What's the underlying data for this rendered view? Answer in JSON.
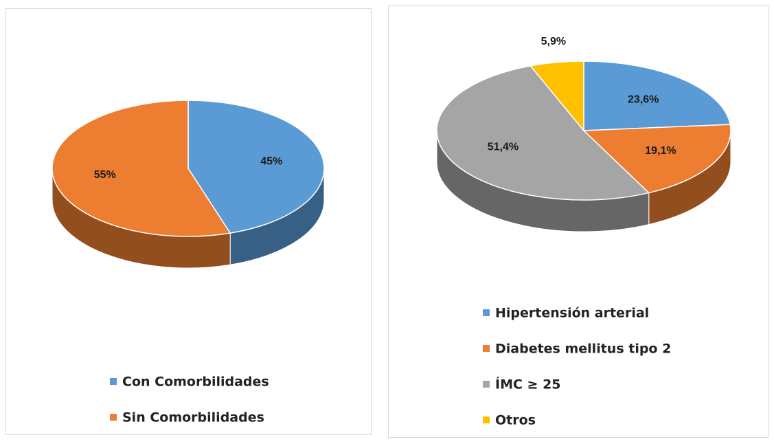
{
  "chart_data": [
    {
      "type": "pie3d",
      "categories": [
        "Con Comorbilidades",
        "Sin Comorbilidades"
      ],
      "values": [
        45,
        55
      ],
      "value_labels": [
        "45%",
        "55%"
      ],
      "colors": [
        "#5b9bd5",
        "#ed7d31"
      ]
    },
    {
      "type": "pie3d",
      "categories": [
        "Hipertensión arterial",
        "Diabetes mellitus tipo 2",
        "ÍMC ≥ 25",
        "Otros"
      ],
      "values": [
        23.6,
        19.1,
        51.4,
        5.9
      ],
      "value_labels": [
        "23,6%",
        "19,1%",
        "51,4%",
        "5,9%"
      ],
      "colors": [
        "#5b9bd5",
        "#ed7d31",
        "#a5a5a5",
        "#ffc000"
      ]
    }
  ]
}
